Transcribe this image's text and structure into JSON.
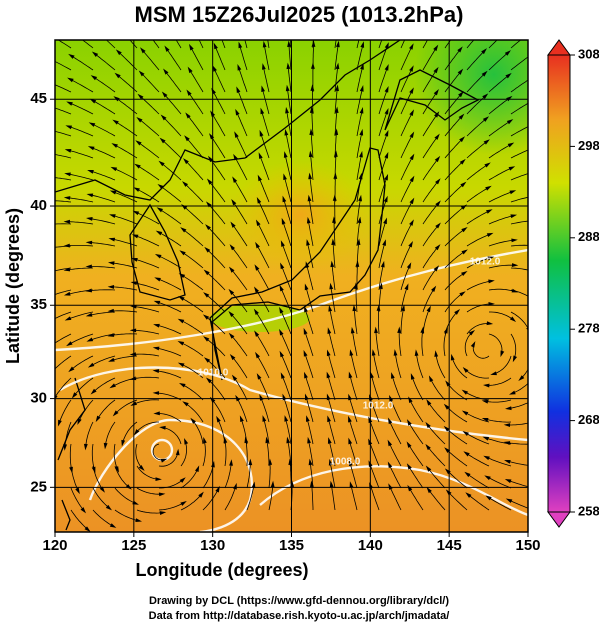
{
  "chart_data": {
    "type": "map",
    "title": "MSM 15Z26Jul2025 (1013.2hPa)",
    "xlabel": "Longitude (degrees)",
    "ylabel": "Latitude  (degrees)",
    "projection": "mercator",
    "xlim": [
      120,
      150
    ],
    "ylim": [
      22.4,
      47.6
    ],
    "xticks": [
      120,
      125,
      130,
      135,
      140,
      145,
      150
    ],
    "yticks": [
      25,
      30,
      35,
      40,
      45
    ],
    "grid": true,
    "colorbar": {
      "lim": [
        258,
        308
      ],
      "ticks": [
        258,
        268,
        278,
        288,
        298,
        308
      ]
    },
    "contour_labels": [
      "1012.0",
      "1010.0",
      "1012.0",
      "1008.0"
    ]
  },
  "footer": [
    "Drawing by DCL (https://www.gfd-dennou.org/library/dcl/)",
    "Data from http://database.rish.kyoto-u.ac.jp/arch/jmadata/"
  ]
}
